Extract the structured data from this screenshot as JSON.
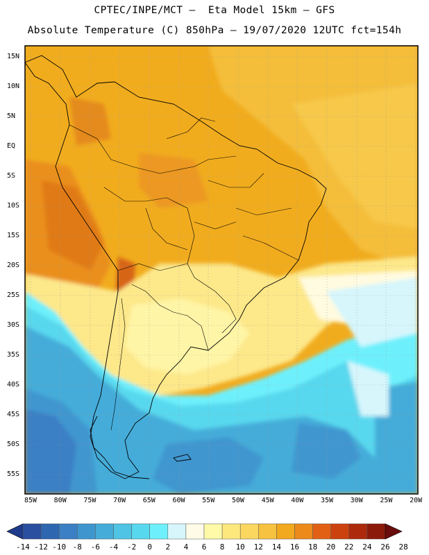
{
  "title_line1": "CPTEC/INPE/MCT –  Eta Model 15km – GFS",
  "title_line2": "Absolute Temperature (C) 850hPa – 19/07/2020 12UTC fct=154h",
  "lat_labels": [
    "15N",
    "10N",
    "5N",
    "EQ",
    "5S",
    "10S",
    "15S",
    "20S",
    "25S",
    "30S",
    "35S",
    "40S",
    "45S",
    "50S",
    "55S"
  ],
  "lon_labels": [
    "85W",
    "80W",
    "75W",
    "70W",
    "65W",
    "60W",
    "55W",
    "50W",
    "45W",
    "40W",
    "35W",
    "30W",
    "25W",
    "20W"
  ],
  "colorbar": {
    "labels": [
      "-14",
      "-12",
      "-10",
      "-8",
      "-6",
      "-4",
      "-2",
      "0",
      "2",
      "4",
      "6",
      "8",
      "10",
      "12",
      "14",
      "16",
      "18",
      "20",
      "22",
      "24",
      "26",
      "28"
    ],
    "colors": [
      "#1e3a8a",
      "#2a4fa0",
      "#2f66b0",
      "#3b7fc4",
      "#3f96cf",
      "#45acd9",
      "#4fc4e4",
      "#58d8ee",
      "#6ef0fc",
      "#d6f6fc",
      "#fffbe6",
      "#fffaa8",
      "#fde87e",
      "#fbd760",
      "#f6c23f",
      "#f2a81f",
      "#ec8a1c",
      "#e26014",
      "#cc420f",
      "#ad2b0c",
      "#8c1a0a",
      "#6b0c0c"
    ]
  }
}
